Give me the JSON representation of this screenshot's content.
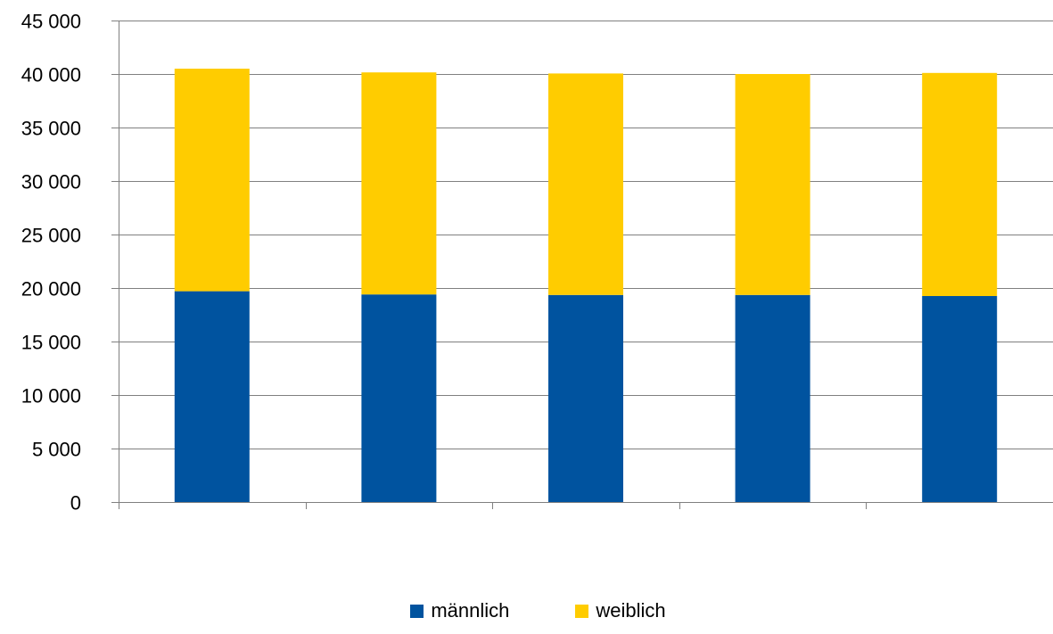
{
  "chart_data": {
    "type": "bar",
    "stacked": true,
    "categories": [
      "",
      "",
      "",
      "",
      ""
    ],
    "series": [
      {
        "name": "männlich",
        "values": [
          19700,
          19400,
          19350,
          19350,
          19250
        ],
        "color": "#00539F"
      },
      {
        "name": "weiblich",
        "values": [
          20800,
          20750,
          20700,
          20650,
          20850
        ],
        "color": "#FFCC00"
      }
    ],
    "title": "",
    "xlabel": "",
    "ylabel": "",
    "ylim": [
      0,
      45000
    ],
    "yticks": [
      {
        "value": 0,
        "label": "0"
      },
      {
        "value": 5000,
        "label": "5 000"
      },
      {
        "value": 10000,
        "label": "10 000"
      },
      {
        "value": 15000,
        "label": "15 000"
      },
      {
        "value": 20000,
        "label": "20 000"
      },
      {
        "value": 25000,
        "label": "25 000"
      },
      {
        "value": 30000,
        "label": "30 000"
      },
      {
        "value": 35000,
        "label": "35 000"
      },
      {
        "value": 40000,
        "label": "40 000"
      },
      {
        "value": 45000,
        "label": "45 000"
      }
    ],
    "grid": true,
    "gridline_color": "#808080",
    "legend_position": "bottom"
  }
}
